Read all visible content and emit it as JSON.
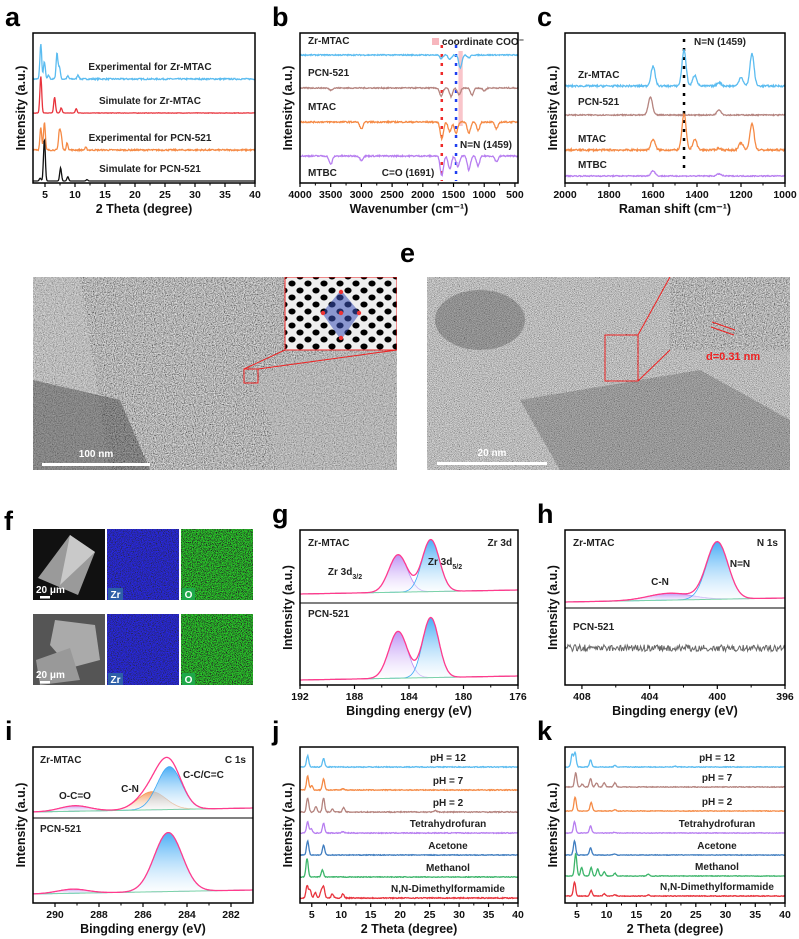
{
  "chart_data": [
    {
      "panel": "a",
      "type": "line",
      "xlabel": "2 Theta (degree)",
      "ylabel": "Intensity (a.u.)",
      "xlim": [
        3,
        40
      ],
      "xticks": [
        5,
        10,
        15,
        20,
        25,
        30,
        35,
        40
      ],
      "peak_width": 0.35,
      "series": [
        {
          "name": "Experimental for Zr-MTAC",
          "color": "#5bbcf0",
          "noise": 0.04,
          "peaks": [
            [
              4.3,
              1.0
            ],
            [
              4.9,
              0.5
            ],
            [
              5.6,
              0.1
            ],
            [
              7.0,
              0.75
            ],
            [
              7.4,
              0.35
            ],
            [
              8.8,
              0.08
            ],
            [
              10.5,
              0.12
            ]
          ]
        },
        {
          "name": "Simulate for Zr-MTAC",
          "color": "#e8333c",
          "noise": 0.01,
          "peaks": [
            [
              4.3,
              1.05
            ],
            [
              6.6,
              0.45
            ],
            [
              7.7,
              0.15
            ],
            [
              10.2,
              0.12
            ]
          ]
        },
        {
          "name": "Experimental for PCN-521",
          "color": "#f58a45",
          "noise": 0.04,
          "peaks": [
            [
              4.3,
              0.65
            ],
            [
              4.9,
              0.8
            ],
            [
              7.4,
              0.55
            ],
            [
              7.7,
              0.4
            ],
            [
              8.7,
              0.2
            ],
            [
              11.8,
              0.07
            ]
          ]
        },
        {
          "name": "Simulate for PCN-521",
          "color": "#111111",
          "noise": 0.0,
          "peaks": [
            [
              4.2,
              0.08
            ],
            [
              4.9,
              1.2
            ],
            [
              7.6,
              0.38
            ],
            [
              8.8,
              0.12
            ],
            [
              12,
              0.04
            ]
          ]
        }
      ]
    },
    {
      "panel": "b",
      "type": "line",
      "xlabel": "Wavenumber (cm⁻¹)",
      "ylabel": "Intensity (a.u.)",
      "xlim": [
        4000,
        450
      ],
      "xticks": [
        4000,
        3500,
        3000,
        2500,
        2000,
        1500,
        1000,
        500
      ],
      "peak_width": 60,
      "legend": "coordinate COO⁻",
      "legend_color": "#f7b6bd",
      "annotations": [
        {
          "text": "N=N (1459)",
          "x": 1459,
          "color": "#1f3ff0"
        },
        {
          "text": "C=O (1691)",
          "x": 1691,
          "color": "#ee2a2a"
        }
      ],
      "series": [
        {
          "name": "Zr-MTAC",
          "color": "#5bbcf0",
          "noise": 0.08,
          "peaks": [
            [
              1700,
              -0.25
            ],
            [
              1560,
              -0.3
            ],
            [
              1390,
              -0.9
            ],
            [
              1250,
              -0.2
            ]
          ]
        },
        {
          "name": "PCN-521",
          "color": "#b5847f",
          "noise": 0.08,
          "peaks": [
            [
              3500,
              -0.15
            ],
            [
              1700,
              -0.6
            ],
            [
              1540,
              -0.6
            ],
            [
              1410,
              -0.5
            ],
            [
              1200,
              -0.5
            ],
            [
              1000,
              -0.2
            ]
          ]
        },
        {
          "name": "MTAC",
          "color": "#f58a45",
          "noise": 0.1,
          "peaks": [
            [
              3000,
              -0.5
            ],
            [
              1691,
              -1.2
            ],
            [
              1560,
              -0.7
            ],
            [
              1459,
              -0.8
            ],
            [
              1250,
              -0.8
            ],
            [
              1100,
              -0.6
            ],
            [
              800,
              -0.5
            ]
          ]
        },
        {
          "name": "MTBC",
          "color": "#b77ef0",
          "noise": 0.1,
          "peaks": [
            [
              3500,
              -0.6
            ],
            [
              3000,
              -0.3
            ],
            [
              1691,
              -1.4
            ],
            [
              1560,
              -0.9
            ],
            [
              1430,
              -0.8
            ],
            [
              1250,
              -1.0
            ],
            [
              1100,
              -0.7
            ],
            [
              800,
              -0.4
            ]
          ]
        }
      ]
    },
    {
      "panel": "c",
      "type": "line",
      "xlabel": "Raman shift (cm⁻¹)",
      "ylabel": "Intensity (a.u.)",
      "xlim": [
        2000,
        1000
      ],
      "xticks": [
        2000,
        1800,
        1600,
        1400,
        1200,
        1000
      ],
      "peak_width": 22,
      "annotations": [
        {
          "text": "N=N (1459)",
          "x": 1459,
          "color": "#000000"
        }
      ],
      "series": [
        {
          "name": "Zr-MTAC",
          "color": "#5bbcf0",
          "noise": 0.05,
          "peaks": [
            [
              1600,
              0.55
            ],
            [
              1459,
              1.0
            ],
            [
              1410,
              0.3
            ],
            [
              1300,
              0.1
            ],
            [
              1200,
              0.25
            ],
            [
              1150,
              0.9
            ]
          ]
        },
        {
          "name": "PCN-521",
          "color": "#b5847f",
          "noise": 0.03,
          "peaks": [
            [
              1612,
              0.5
            ],
            [
              1300,
              0.15
            ]
          ]
        },
        {
          "name": "MTAC",
          "color": "#f58a45",
          "noise": 0.05,
          "peaks": [
            [
              1600,
              0.3
            ],
            [
              1459,
              1.0
            ],
            [
              1410,
              0.3
            ],
            [
              1300,
              0.05
            ],
            [
              1200,
              0.2
            ],
            [
              1150,
              0.75
            ]
          ]
        },
        {
          "name": "MTBC",
          "color": "#b77ef0",
          "noise": 0.03,
          "peaks": [
            [
              1600,
              0.15
            ],
            [
              1300,
              0.06
            ]
          ]
        }
      ]
    },
    {
      "panel": "g",
      "type": "xps",
      "title": "Zr 3d",
      "xlabel": "Bingding energy (eV)",
      "ylabel": "Intensity (a.u.)",
      "xlim": [
        192,
        176
      ],
      "xticks": [
        192,
        188,
        184,
        180,
        176
      ],
      "subplots": [
        {
          "sample": "Zr-MTAC",
          "components": [
            {
              "label": "Zr 3d",
              "sub": "3/2",
              "center": 184.8,
              "height": 0.72,
              "fwhm": 1.6,
              "color": "#b98cf5"
            },
            {
              "label": "Zr 3d",
              "sub": "5/2",
              "center": 182.4,
              "height": 1.0,
              "fwhm": 1.5,
              "color": "#3fa9f5"
            }
          ]
        },
        {
          "sample": "PCN-521",
          "components": [
            {
              "label": "",
              "sub": "",
              "center": 184.8,
              "height": 0.78,
              "fwhm": 1.6,
              "color": "#b98cf5"
            },
            {
              "label": "",
              "sub": "",
              "center": 182.4,
              "height": 1.0,
              "fwhm": 1.4,
              "color": "#3fa9f5"
            }
          ]
        }
      ]
    },
    {
      "panel": "h",
      "type": "xps",
      "title": "N 1s",
      "xlabel": "Bingding energy (eV)",
      "ylabel": "Intensity (a.u.)",
      "xlim": [
        409,
        396
      ],
      "xticks": [
        408,
        404,
        400,
        396
      ],
      "subplots": [
        {
          "sample": "Zr-MTAC",
          "components": [
            {
              "label": "C-N",
              "sub": "",
              "center": 402.8,
              "height": 0.12,
              "fwhm": 3.0,
              "color": "#b98cf5"
            },
            {
              "label": "N=N",
              "sub": "",
              "center": 400.0,
              "height": 1.0,
              "fwhm": 1.5,
              "color": "#3fa9f5"
            }
          ]
        },
        {
          "sample": "PCN-521",
          "components": [],
          "noise_only": true,
          "color": "#666666"
        }
      ]
    },
    {
      "panel": "i",
      "type": "xps",
      "title": "C 1s",
      "xlabel": "Bingding energy (eV)",
      "ylabel": "Intensity (a.u.)",
      "xlim": [
        291,
        281
      ],
      "xticks": [
        290,
        288,
        286,
        284,
        282
      ],
      "subplots": [
        {
          "sample": "Zr-MTAC",
          "components": [
            {
              "label": "O-C=O",
              "sub": "",
              "center": 289.1,
              "height": 0.1,
              "fwhm": 1.6,
              "color": "#c79af0"
            },
            {
              "label": "C-N",
              "sub": "",
              "center": 285.6,
              "height": 0.33,
              "fwhm": 1.5,
              "color": "#f59a5a"
            },
            {
              "label": "C-C/C=C",
              "sub": "",
              "center": 284.8,
              "height": 0.78,
              "fwhm": 1.3,
              "color": "#3fa9f5"
            }
          ]
        },
        {
          "sample": "PCN-521",
          "components": [
            {
              "label": "",
              "sub": "",
              "center": 289.2,
              "height": 0.07,
              "fwhm": 1.6,
              "color": "#c79af0"
            },
            {
              "label": "",
              "sub": "",
              "center": 284.85,
              "height": 1.0,
              "fwhm": 1.5,
              "color": "#3fa9f5"
            }
          ]
        }
      ]
    },
    {
      "panel": "j",
      "type": "line",
      "xlabel": "2 Theta (degree)",
      "ylabel": "Intensity (a.u.)",
      "xlim": [
        3,
        40
      ],
      "xticks": [
        5,
        10,
        15,
        20,
        25,
        30,
        35,
        40
      ],
      "peak_width": 0.45,
      "series": [
        {
          "name": "pH = 12",
          "color": "#5bbcf0",
          "noise": 0.06,
          "peaks": [
            [
              4.3,
              0.8
            ],
            [
              7.0,
              0.6
            ]
          ]
        },
        {
          "name": "pH = 7",
          "color": "#f58a45",
          "noise": 0.06,
          "peaks": [
            [
              4.3,
              1.0
            ],
            [
              5.0,
              0.3
            ],
            [
              7.0,
              0.8
            ],
            [
              10.3,
              0.1
            ]
          ]
        },
        {
          "name": "pH = 2",
          "color": "#b5847f",
          "noise": 0.07,
          "peaks": [
            [
              4.3,
              1.0
            ],
            [
              5.7,
              0.4
            ],
            [
              7.0,
              1.0
            ],
            [
              8.5,
              0.2
            ],
            [
              10.4,
              0.3
            ],
            [
              26,
              0.1
            ]
          ]
        },
        {
          "name": "Tetrahydrofuran",
          "color": "#b77ef0",
          "noise": 0.06,
          "peaks": [
            [
              4.3,
              0.8
            ],
            [
              4.9,
              0.3
            ],
            [
              7.0,
              0.7
            ],
            [
              10.3,
              0.1
            ]
          ]
        },
        {
          "name": "Acetone",
          "color": "#3f7dc0",
          "noise": 0.05,
          "peaks": [
            [
              4.3,
              1.0
            ],
            [
              7.0,
              0.7
            ]
          ]
        },
        {
          "name": "Methanol",
          "color": "#3cb56a",
          "noise": 0.05,
          "peaks": [
            [
              4.2,
              1.3
            ],
            [
              6.8,
              0.5
            ]
          ]
        },
        {
          "name": "N,N-Dimethylformamide",
          "color": "#e8333c",
          "noise": 0.07,
          "peaks": [
            [
              4.2,
              0.9
            ],
            [
              4.7,
              0.6
            ],
            [
              5.6,
              0.4
            ],
            [
              6.6,
              0.5
            ],
            [
              7.0,
              0.8
            ],
            [
              8.5,
              0.3
            ],
            [
              10.3,
              0.3
            ]
          ]
        }
      ]
    },
    {
      "panel": "k",
      "type": "line",
      "xlabel": "2 Theta (degree)",
      "ylabel": "Intensity (a.u.)",
      "xlim": [
        3,
        40
      ],
      "xticks": [
        5,
        10,
        15,
        20,
        25,
        30,
        35,
        40
      ],
      "peak_width": 0.45,
      "series": [
        {
          "name": "pH = 12",
          "color": "#5bbcf0",
          "noise": 0.05,
          "peaks": [
            [
              4.2,
              0.9
            ],
            [
              4.7,
              1.0
            ],
            [
              7.3,
              0.5
            ],
            [
              11.4,
              0.1
            ],
            [
              21.5,
              0.05
            ]
          ]
        },
        {
          "name": "pH = 7",
          "color": "#b5847f",
          "noise": 0.05,
          "peaks": [
            [
              4.8,
              1.0
            ],
            [
              5.9,
              0.2
            ],
            [
              7.3,
              0.6
            ],
            [
              8.3,
              0.3
            ],
            [
              9.6,
              0.3
            ],
            [
              11.4,
              0.3
            ]
          ]
        },
        {
          "name": "pH = 2",
          "color": "#f58a45",
          "noise": 0.04,
          "peaks": [
            [
              4.7,
              1.0
            ],
            [
              7.4,
              0.6
            ],
            [
              11.4,
              0.1
            ]
          ]
        },
        {
          "name": "Tetrahydrofuran",
          "color": "#b77ef0",
          "noise": 0.04,
          "peaks": [
            [
              4.6,
              0.8
            ],
            [
              7.3,
              0.5
            ],
            [
              11.3,
              0.05
            ]
          ]
        },
        {
          "name": "Acetone",
          "color": "#3f7dc0",
          "noise": 0.04,
          "peaks": [
            [
              4.6,
              1.0
            ],
            [
              7.3,
              0.5
            ],
            [
              11.3,
              0.08
            ]
          ]
        },
        {
          "name": "Methanol",
          "color": "#3cb56a",
          "noise": 0.04,
          "peaks": [
            [
              4.8,
              1.6
            ],
            [
              5.8,
              0.6
            ],
            [
              7.4,
              0.6
            ],
            [
              8.5,
              0.5
            ],
            [
              9.6,
              0.3
            ],
            [
              11.4,
              0.2
            ],
            [
              17,
              0.15
            ]
          ]
        },
        {
          "name": "N,N-Dimethylformamide",
          "color": "#e8333c",
          "noise": 0.05,
          "peaks": [
            [
              4.6,
              1.0
            ],
            [
              7.4,
              0.4
            ],
            [
              9.6,
              0.15
            ],
            [
              11.4,
              0.1
            ],
            [
              17,
              0.08
            ]
          ]
        }
      ]
    }
  ],
  "images": {
    "d": {
      "panel": "d",
      "scale_bar": "100 nm"
    },
    "e": {
      "panel": "e",
      "scale_bar": "20 nm",
      "annotation": "d=0.31 nm"
    },
    "f": {
      "panel": "f",
      "scale_bar": "20 μm",
      "map_labels": [
        "Zr",
        "O"
      ],
      "map_colors": [
        "#2e5fa8",
        "#1fa84a"
      ]
    }
  }
}
